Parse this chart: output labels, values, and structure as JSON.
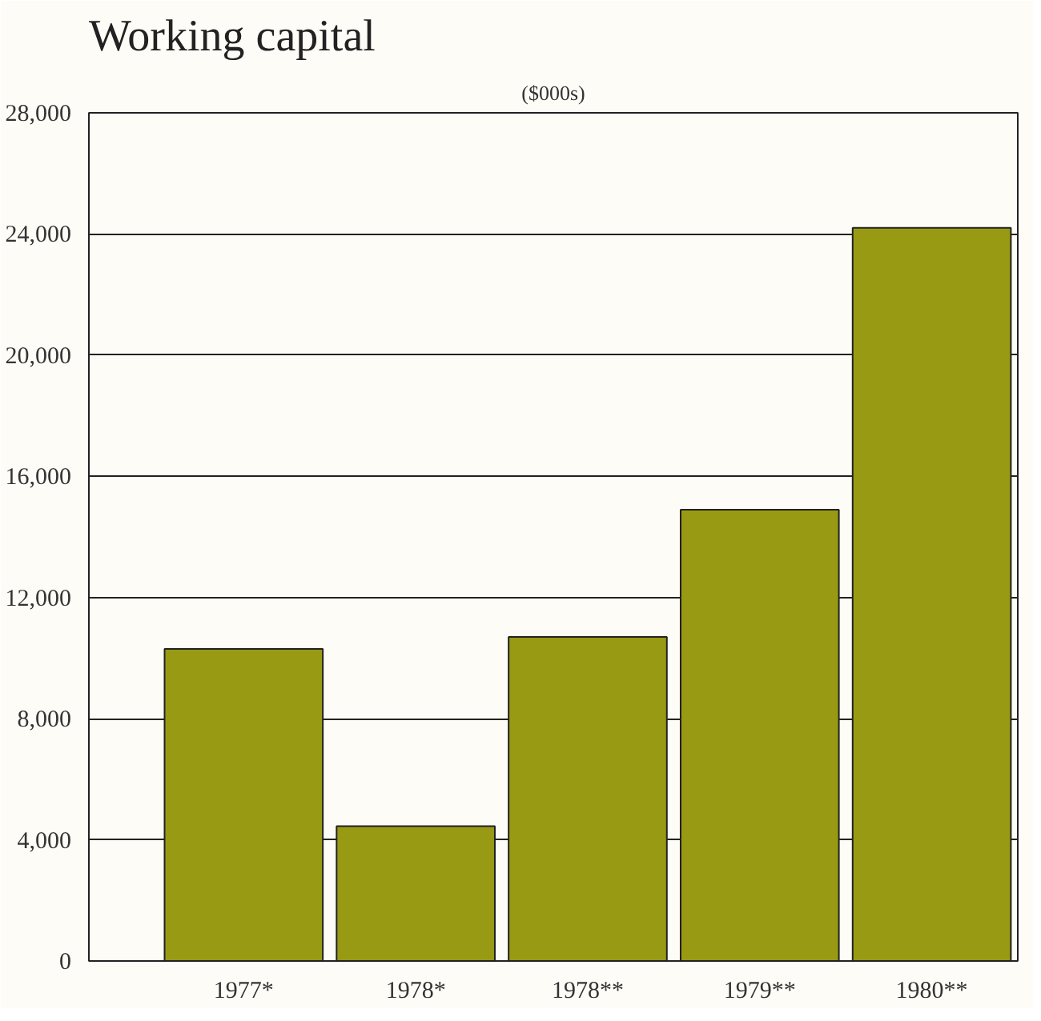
{
  "chart_data": {
    "type": "bar",
    "title": "Working capital",
    "subtitle": "($000s)",
    "categories": [
      "1977*",
      "1978*",
      "1978**",
      "1979**",
      "1980**"
    ],
    "values": [
      10300,
      4450,
      10700,
      14900,
      24200
    ],
    "color": "#999a14",
    "ylim": [
      0,
      28000
    ],
    "yticks": [
      0,
      {
        "value": 4000,
        "label": "4,000"
      },
      {
        "value": 8000,
        "label": "8,000"
      },
      {
        "value": 12000,
        "label": "12,000"
      },
      {
        "value": 16000,
        "label": "16,000"
      },
      {
        "value": 20000,
        "label": "20,000"
      },
      {
        "value": 24000,
        "label": "24,000"
      },
      {
        "value": 28000,
        "label": "28,000"
      }
    ],
    "grid": "y"
  }
}
